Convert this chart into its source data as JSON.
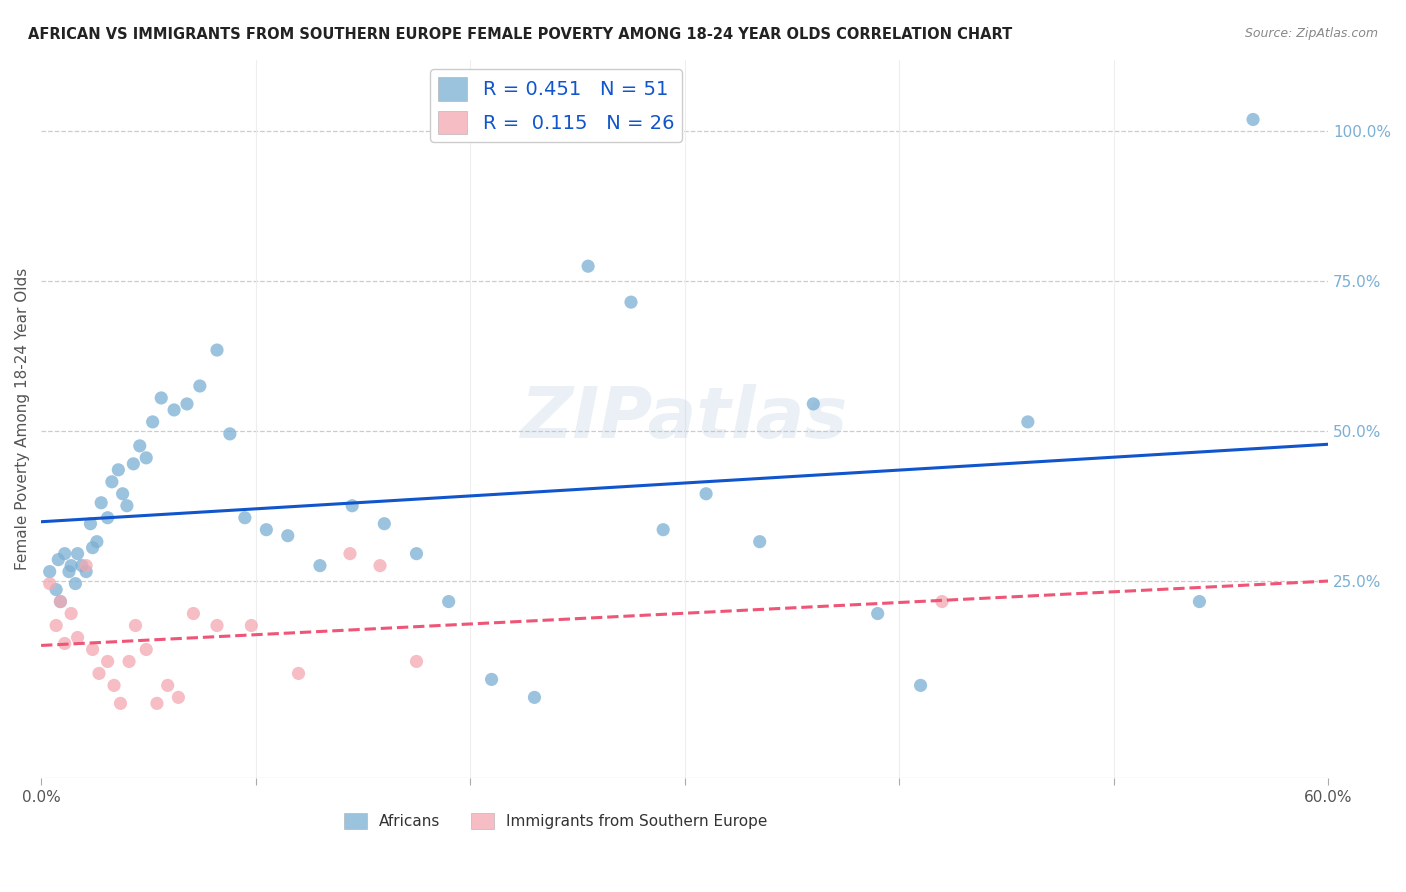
{
  "title": "AFRICAN VS IMMIGRANTS FROM SOUTHERN EUROPE FEMALE POVERTY AMONG 18-24 YEAR OLDS CORRELATION CHART",
  "source": "Source: ZipAtlas.com",
  "ylabel": "Female Poverty Among 18-24 Year Olds",
  "xlim": [
    0.0,
    0.6
  ],
  "ylim": [
    -0.08,
    1.12
  ],
  "xticks": [
    0.0,
    0.1,
    0.2,
    0.3,
    0.4,
    0.5,
    0.6
  ],
  "xticklabels": [
    "0.0%",
    "",
    "",
    "",
    "",
    "",
    "60.0%"
  ],
  "ytick_right_labels": [
    "100.0%",
    "75.0%",
    "50.0%",
    "25.0%"
  ],
  "ytick_right_values": [
    1.0,
    0.75,
    0.5,
    0.25
  ],
  "africans_color": "#7BAFD4",
  "se_color": "#F4A7B0",
  "trendline_african_color": "#1155CC",
  "trendline_se_color": "#EE5577",
  "R_african": "0.451",
  "N_african": "51",
  "R_se": "0.115",
  "N_se": "26",
  "watermark": "ZIPatlas",
  "africans_x": [
    0.004,
    0.007,
    0.008,
    0.009,
    0.011,
    0.013,
    0.014,
    0.016,
    0.017,
    0.019,
    0.021,
    0.023,
    0.024,
    0.026,
    0.028,
    0.031,
    0.033,
    0.036,
    0.038,
    0.04,
    0.043,
    0.046,
    0.049,
    0.052,
    0.056,
    0.062,
    0.068,
    0.074,
    0.082,
    0.088,
    0.095,
    0.105,
    0.115,
    0.13,
    0.145,
    0.16,
    0.175,
    0.19,
    0.21,
    0.23,
    0.255,
    0.275,
    0.29,
    0.31,
    0.335,
    0.36,
    0.39,
    0.41,
    0.46,
    0.54,
    0.565
  ],
  "africans_y": [
    0.265,
    0.235,
    0.285,
    0.215,
    0.295,
    0.265,
    0.275,
    0.245,
    0.295,
    0.275,
    0.265,
    0.345,
    0.305,
    0.315,
    0.38,
    0.355,
    0.415,
    0.435,
    0.395,
    0.375,
    0.445,
    0.475,
    0.455,
    0.515,
    0.555,
    0.535,
    0.545,
    0.575,
    0.635,
    0.495,
    0.355,
    0.335,
    0.325,
    0.275,
    0.375,
    0.345,
    0.295,
    0.215,
    0.085,
    0.055,
    0.775,
    0.715,
    0.335,
    0.395,
    0.315,
    0.545,
    0.195,
    0.075,
    0.515,
    0.215,
    1.02
  ],
  "se_x": [
    0.004,
    0.007,
    0.009,
    0.011,
    0.014,
    0.017,
    0.021,
    0.024,
    0.027,
    0.031,
    0.034,
    0.037,
    0.041,
    0.044,
    0.049,
    0.054,
    0.059,
    0.064,
    0.071,
    0.082,
    0.098,
    0.12,
    0.144,
    0.158,
    0.42,
    0.175
  ],
  "se_y": [
    0.245,
    0.175,
    0.215,
    0.145,
    0.195,
    0.155,
    0.275,
    0.135,
    0.095,
    0.115,
    0.075,
    0.045,
    0.115,
    0.175,
    0.135,
    0.045,
    0.075,
    0.055,
    0.195,
    0.175,
    0.175,
    0.095,
    0.295,
    0.275,
    0.215,
    0.115
  ]
}
